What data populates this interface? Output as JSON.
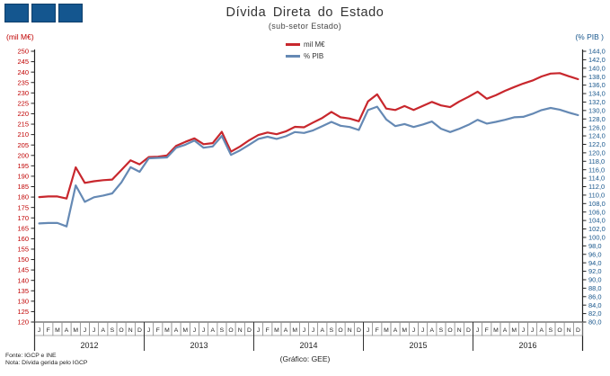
{
  "header": {
    "title": "Dívida Direta do  Estado",
    "subtitle": "(sub-setor  Estado)"
  },
  "logo": {
    "squares": 3,
    "color": "#14568F"
  },
  "footer": {
    "source": "Fonte: IGCP e INE",
    "note": "Nota: Dívida gerida pelo IGCP",
    "credit": "(Gráfico:  GEE)"
  },
  "chart_data": {
    "type": "line",
    "title": "Dívida Direta do Estado",
    "subtitle": "(sub-setor Estado)",
    "grid": false,
    "legend_position": "top-center",
    "month_letters": [
      "J",
      "F",
      "M",
      "A",
      "M",
      "J",
      "J",
      "A",
      "S",
      "O",
      "N",
      "D"
    ],
    "x_years": [
      2012,
      2013,
      2014,
      2015,
      2016
    ],
    "left_axis": {
      "label": "(mil M€)",
      "min": 120,
      "max": 250,
      "step": 5,
      "color": "#C00000",
      "tick_format": "integer"
    },
    "right_axis": {
      "label": "(% PIB )",
      "min": 80.0,
      "max": 144.0,
      "step": 2.0,
      "color": "#17568C",
      "tick_format": "comma_decimal"
    },
    "series": [
      {
        "name": "mil M€",
        "axis": "left",
        "color": "#C8272D",
        "values": [
          180.0,
          180.3,
          180.3,
          179.3,
          194.3,
          186.8,
          187.6,
          188.1,
          188.4,
          193.0,
          197.6,
          195.7,
          199.2,
          199.4,
          200.0,
          204.6,
          206.5,
          208.2,
          205.4,
          205.9,
          211.3,
          201.8,
          204.3,
          207.3,
          209.8,
          211.0,
          210.2,
          211.5,
          213.7,
          213.5,
          215.8,
          218.0,
          220.9,
          218.3,
          217.7,
          216.4,
          225.9,
          229.3,
          222.5,
          221.8,
          223.7,
          221.8,
          223.8,
          225.7,
          224.0,
          223.2,
          225.9,
          228.1,
          230.6,
          227.2,
          228.9,
          231.0,
          232.8,
          234.5,
          235.9,
          237.9,
          239.3,
          239.5,
          238.0,
          236.6
        ]
      },
      {
        "name": "% PIB",
        "axis": "right",
        "color": "#6589B4",
        "values": [
          103.3,
          103.4,
          103.4,
          102.6,
          112.3,
          108.4,
          109.5,
          109.9,
          110.4,
          113.0,
          116.6,
          115.5,
          118.7,
          118.8,
          118.9,
          121.2,
          121.9,
          122.9,
          121.2,
          121.5,
          124.0,
          119.5,
          120.6,
          121.9,
          123.3,
          123.8,
          123.3,
          123.9,
          124.9,
          124.7,
          125.3,
          126.3,
          127.3,
          126.4,
          126.1,
          125.4,
          130.1,
          130.9,
          127.9,
          126.3,
          126.8,
          126.1,
          126.7,
          127.4,
          125.7,
          124.9,
          125.7,
          126.6,
          127.8,
          126.9,
          127.3,
          127.8,
          128.4,
          128.5,
          129.2,
          130.1,
          130.6,
          130.2,
          129.5,
          128.9
        ]
      }
    ]
  }
}
